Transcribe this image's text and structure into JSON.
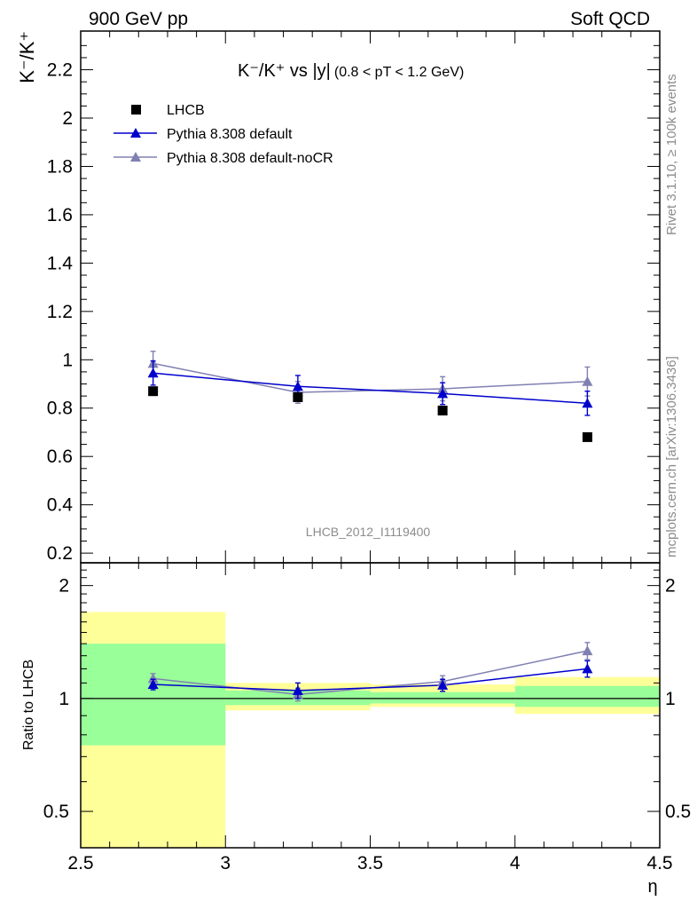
{
  "header": {
    "left": "900 GeV pp",
    "right": "Soft QCD"
  },
  "side_text": {
    "top": "Rivet 3.1.10, ≥ 100k events",
    "bottom": "mcplots.cern.ch [arXiv:1306.3436]"
  },
  "watermark": "LHCB_2012_I1119400",
  "title": {
    "main": "K⁻/K⁺ vs |y|",
    "cut": "(0.8 < pT < 1.2 GeV)"
  },
  "colors": {
    "data": "#000000",
    "default": "#0000cc",
    "nocr": "#8080b3",
    "band_inner": "#99ff99",
    "band_outer": "#ffff99"
  },
  "chart_data": [
    {
      "type": "scatter",
      "panel": "main",
      "ylabel": "K⁻/K⁺",
      "xlim": [
        2.5,
        4.5
      ],
      "ylim": [
        0.16,
        2.36
      ],
      "yticks": [
        "0.2",
        "0.4",
        "0.6",
        "0.8",
        "1",
        "1.2",
        "1.4",
        "1.6",
        "1.8",
        "2",
        "2.2"
      ],
      "legend_position": "top-left",
      "x": [
        2.75,
        3.25,
        3.75,
        4.25
      ],
      "series": [
        {
          "name": "LHCB",
          "values": [
            0.87,
            0.845,
            0.79,
            0.68
          ],
          "errors": [
            0.01,
            0.01,
            0.01,
            0.01
          ]
        },
        {
          "name": "Pythia 8.308 default",
          "values": [
            0.945,
            0.89,
            0.86,
            0.82
          ],
          "errors": [
            0.05,
            0.045,
            0.045,
            0.05
          ]
        },
        {
          "name": "Pythia 8.308 default-noCR",
          "values": [
            0.985,
            0.865,
            0.88,
            0.91
          ],
          "errors": [
            0.05,
            0.045,
            0.05,
            0.06
          ]
        }
      ]
    },
    {
      "type": "scatter",
      "panel": "ratio",
      "ylabel": "Ratio to LHCB",
      "xlabel": "η",
      "xlim": [
        2.5,
        4.5
      ],
      "ylim": [
        0.4,
        2.3
      ],
      "yticks": [
        "0.5",
        "1",
        "2"
      ],
      "xticks": [
        "2.5",
        "3",
        "3.5",
        "4",
        "4.5"
      ],
      "x": [
        2.75,
        3.25,
        3.75,
        4.25
      ],
      "bins": [
        [
          2.5,
          3.0
        ],
        [
          3.0,
          3.5
        ],
        [
          3.5,
          4.0
        ],
        [
          4.0,
          4.5
        ]
      ],
      "band_inner": [
        [
          0.75,
          1.4
        ],
        [
          0.96,
          1.05
        ],
        [
          0.97,
          1.04
        ],
        [
          0.95,
          1.08
        ]
      ],
      "band_outer": [
        [
          0.38,
          1.7
        ],
        [
          0.93,
          1.1
        ],
        [
          0.95,
          1.09
        ],
        [
          0.91,
          1.14
        ]
      ],
      "series": [
        {
          "name": "Pythia 8.308 default",
          "values": [
            1.09,
            1.05,
            1.085,
            1.2
          ],
          "errors": [
            0.035,
            0.05,
            0.04,
            0.06
          ]
        },
        {
          "name": "Pythia 8.308 default-noCR",
          "values": [
            1.13,
            1.025,
            1.11,
            1.34
          ],
          "errors": [
            0.035,
            0.04,
            0.04,
            0.07
          ]
        }
      ]
    }
  ]
}
